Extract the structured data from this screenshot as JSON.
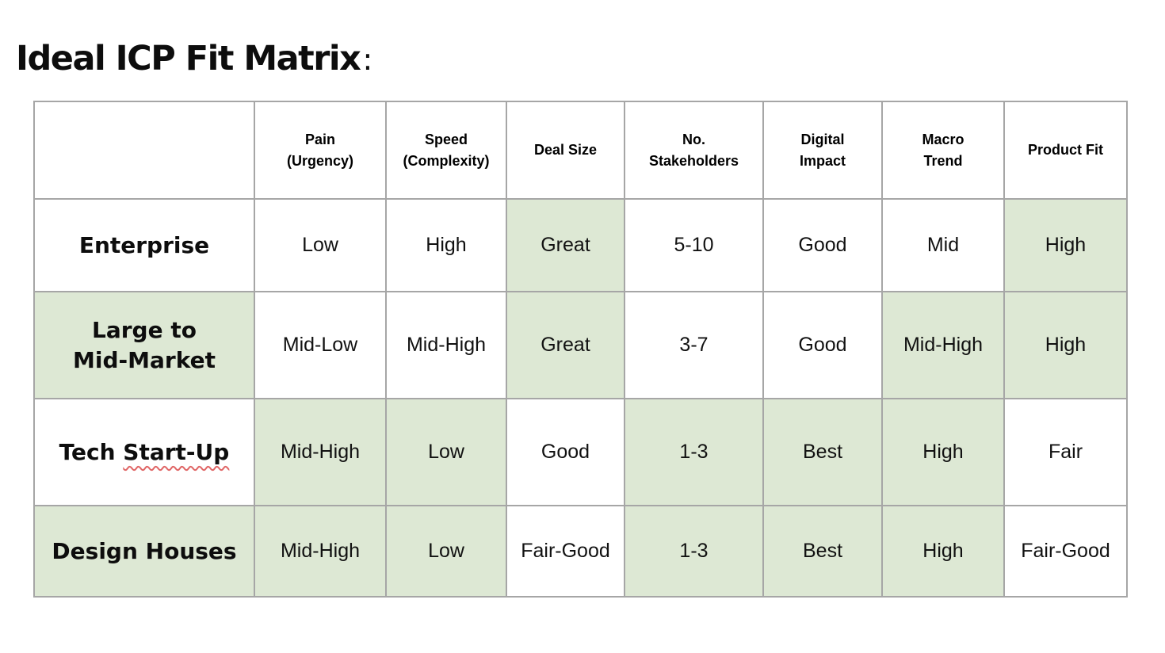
{
  "title": {
    "text": "Ideal ICP Fit Matrix",
    "colon": ":"
  },
  "colors": {
    "highlight_green": "#dde8d4",
    "border_gray": "#a6a6a6",
    "squiggle_red": "#e06666"
  },
  "table": {
    "columns": [
      "Pain\n(Urgency)",
      "Speed\n(Complexity)",
      "Deal Size",
      "No.\nStakeholders",
      "Digital\nImpact",
      "Macro\nTrend",
      "Product Fit"
    ],
    "rows": [
      {
        "label": "Enterprise",
        "label_highlight": false,
        "cells": [
          {
            "text": "Low",
            "highlight": false
          },
          {
            "text": "High",
            "highlight": false
          },
          {
            "text": "Great",
            "highlight": true
          },
          {
            "text": "5-10",
            "highlight": false
          },
          {
            "text": "Good",
            "highlight": false
          },
          {
            "text": "Mid",
            "highlight": false
          },
          {
            "text": "High",
            "highlight": true
          }
        ]
      },
      {
        "label": "Large to\nMid-Market",
        "label_highlight": true,
        "cells": [
          {
            "text": "Mid-Low",
            "highlight": false
          },
          {
            "text": "Mid-High",
            "highlight": false
          },
          {
            "text": "Great",
            "highlight": true
          },
          {
            "text": "3-7",
            "highlight": false
          },
          {
            "text": "Good",
            "highlight": false
          },
          {
            "text": "Mid-High",
            "highlight": true
          },
          {
            "text": "High",
            "highlight": true
          }
        ]
      },
      {
        "label": "Tech Start-Up",
        "label_highlight": false,
        "misspell_underline": "Start-Up",
        "cells": [
          {
            "text": "Mid-High",
            "highlight": true
          },
          {
            "text": "Low",
            "highlight": true
          },
          {
            "text": "Good",
            "highlight": false
          },
          {
            "text": "1-3",
            "highlight": true
          },
          {
            "text": "Best",
            "highlight": true
          },
          {
            "text": "High",
            "highlight": true
          },
          {
            "text": "Fair",
            "highlight": false
          }
        ]
      },
      {
        "label": "Design Houses",
        "label_highlight": true,
        "cells": [
          {
            "text": "Mid-High",
            "highlight": true
          },
          {
            "text": "Low",
            "highlight": true
          },
          {
            "text": "Fair-Good",
            "highlight": false
          },
          {
            "text": "1-3",
            "highlight": true
          },
          {
            "text": "Best",
            "highlight": true
          },
          {
            "text": "High",
            "highlight": true
          },
          {
            "text": "Fair-Good",
            "highlight": false
          }
        ]
      }
    ]
  }
}
